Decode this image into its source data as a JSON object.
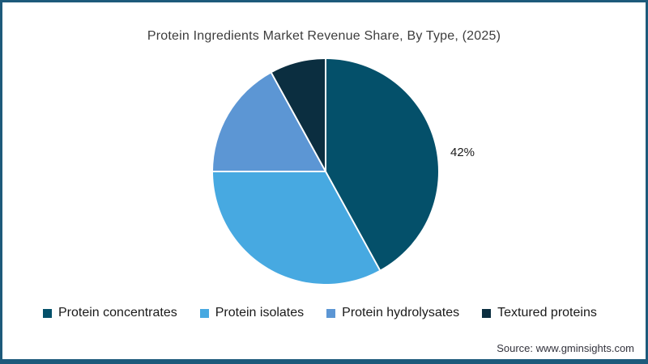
{
  "page": {
    "background": "#ffffff",
    "frame_color": "#1d5a7b",
    "source": "Source: www.gminsights.com"
  },
  "chart_data": {
    "type": "pie",
    "title": "Protein Ingredients Market Revenue Share, By Type, (2025)",
    "start_angle_deg": 0,
    "direction": "clockwise",
    "legend_position": "bottom",
    "divider_color": "#ffffff",
    "slices": [
      {
        "label": "Protein concentrates",
        "value_pct": 42,
        "color": "#04506a",
        "data_label": "42%"
      },
      {
        "label": "Protein isolates",
        "value_pct": 33,
        "color": "#47a9e1",
        "data_label": ""
      },
      {
        "label": "Protein hydrolysates",
        "value_pct": 17,
        "color": "#5c96d4",
        "data_label": ""
      },
      {
        "label": "Textured proteins",
        "value_pct": 8,
        "color": "#0b2e40",
        "data_label": ""
      }
    ]
  }
}
